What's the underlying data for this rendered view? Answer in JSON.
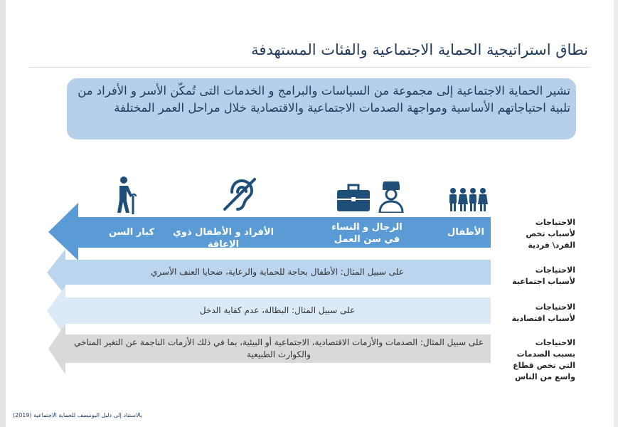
{
  "title": "نطاق استراتيجية الحماية الاجتماعية والفئات المستهدفة",
  "intro": "تشير الحماية الاجتماعية إلى مجموعة من السياسات والبرامج و الخدمات  التى تُمكّن الأسر و الأفراد من تلبية احتياجاتهم الأساسية ومواجهة الصدمات الاجتماعية والاقتصادية خلال مراحل العمر المختلفة",
  "rows": [
    {
      "side": "الاحتياجات لأسباب تخص الفرد\\ فردية",
      "color": "#5b9bd5",
      "groups": [
        {
          "label": "الأطفال",
          "icon": "children-icon"
        },
        {
          "label": "الرجال و النساء في سن العمل",
          "icon": "briefcase-worker-icon"
        },
        {
          "label": "الأفراد و الأطفال ذوي الإعاقة",
          "icon": "hearing-disability-icon"
        },
        {
          "label": "كبار السن",
          "icon": "elderly-cane-icon"
        }
      ]
    },
    {
      "side": "الاحتياجات لأسباب اجتماعية",
      "color": "#bcd5ee",
      "example": "على سبيل المثال: الأطفال بحاجة للحماية والرعاية، ضحايا العنف الأسري"
    },
    {
      "side": "الاحتياجات لأسباب اقتصادية",
      "color": "#dce9f6",
      "example": "على سبيل المثال: البطالة، عدم كفاية الدخل"
    },
    {
      "side": "الاحتياجات بسبب الصدمات التي تخص قطاع واسع من الناس",
      "color": "#d9d9d9",
      "example": "على سبيل المثال: الصدمات والأزمات الاقتصادية، الاجتماعية أو البيئية، بما في ذلك الأزمات الناجمة عن التغير المناخي والكوارث الطبيعية"
    }
  ],
  "footnote": "بالاستناد إلى دليل اليونيسف للحماية الاجتماعية (2019)"
}
